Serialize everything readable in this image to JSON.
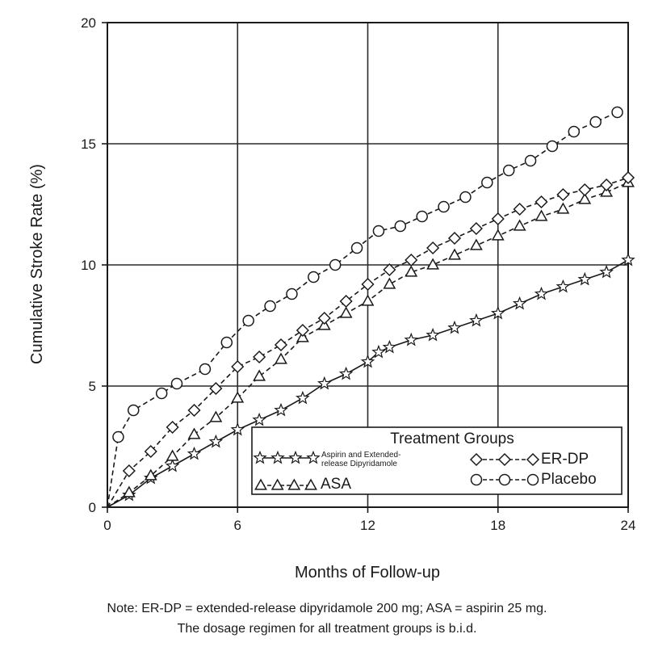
{
  "chart_data": {
    "type": "line",
    "title": "",
    "xlabel": "Months of Follow-up",
    "ylabel": "Cumulative Stroke Rate (%)",
    "xlim": [
      0,
      24
    ],
    "ylim": [
      0,
      20
    ],
    "xticks": [
      "0",
      "6",
      "12",
      "18",
      "24"
    ],
    "yticks": [
      "0",
      "5",
      "10",
      "15",
      "20"
    ],
    "grid": true,
    "legend": {
      "title": "Treatment Groups",
      "placement": "bottom-right"
    },
    "series": [
      {
        "name": "Aspirin and Extended-release Dipyridamole",
        "marker": "star",
        "line_style": "solid",
        "x": [
          0,
          1,
          2,
          3,
          4,
          5,
          6,
          7,
          8,
          9,
          10,
          11,
          12,
          12.5,
          13,
          14,
          15,
          16,
          17,
          18,
          19,
          20,
          21,
          22,
          23,
          24
        ],
        "y": [
          0,
          0.5,
          1.2,
          1.7,
          2.2,
          2.7,
          3.2,
          3.6,
          4.0,
          4.5,
          5.1,
          5.5,
          6.0,
          6.4,
          6.6,
          6.9,
          7.1,
          7.4,
          7.7,
          8.0,
          8.4,
          8.8,
          9.1,
          9.4,
          9.7,
          10.2
        ]
      },
      {
        "name": "ASA",
        "marker": "triangle",
        "line_style": "dashed",
        "x": [
          0,
          1,
          2,
          3,
          4,
          5,
          6,
          7,
          8,
          9,
          10,
          11,
          12,
          13,
          14,
          15,
          16,
          17,
          18,
          19,
          20,
          21,
          22,
          23,
          24
        ],
        "y": [
          0,
          0.6,
          1.3,
          2.1,
          3.0,
          3.7,
          4.5,
          5.4,
          6.1,
          7.0,
          7.5,
          8.0,
          8.5,
          9.2,
          9.7,
          10.0,
          10.4,
          10.8,
          11.2,
          11.6,
          12.0,
          12.3,
          12.7,
          13.0,
          13.4
        ]
      },
      {
        "name": "ER-DP",
        "marker": "diamond",
        "line_style": "dashed",
        "x": [
          0,
          1,
          2,
          3,
          4,
          5,
          6,
          7,
          8,
          9,
          10,
          11,
          12,
          13,
          14,
          15,
          16,
          17,
          18,
          19,
          20,
          21,
          22,
          23,
          24
        ],
        "y": [
          0,
          1.5,
          2.3,
          3.3,
          4.0,
          4.9,
          5.8,
          6.2,
          6.7,
          7.3,
          7.8,
          8.5,
          9.2,
          9.8,
          10.2,
          10.7,
          11.1,
          11.5,
          11.9,
          12.3,
          12.6,
          12.9,
          13.1,
          13.3,
          13.6
        ]
      },
      {
        "name": "Placebo",
        "marker": "circle",
        "line_style": "dashed",
        "x": [
          0,
          0.5,
          1.2,
          2.5,
          3.2,
          4.5,
          5.5,
          6.5,
          7.5,
          8.5,
          9.5,
          10.5,
          11.5,
          12.5,
          13.5,
          14.5,
          15.5,
          16.5,
          17.5,
          18.5,
          19.5,
          20.5,
          21.5,
          22.5,
          23.5
        ],
        "y": [
          0,
          2.9,
          4.0,
          4.7,
          5.1,
          5.7,
          6.8,
          7.7,
          8.3,
          8.8,
          9.5,
          10.0,
          10.7,
          11.4,
          11.6,
          12.0,
          12.4,
          12.8,
          13.4,
          13.9,
          14.3,
          14.9,
          15.5,
          15.9,
          16.3
        ]
      }
    ]
  },
  "legend_display": {
    "star_line1": "Aspirin and Extended-",
    "star_line2": "release Dipyridamole",
    "asa": "ASA",
    "erdp": "ER-DP",
    "placebo": "Placebo"
  },
  "note": {
    "line1": "Note: ER-DP = extended-release dipyridamole 200 mg; ASA = aspirin 25 mg.",
    "line2": "The dosage regimen for all treatment groups is b.i.d."
  },
  "colors": {
    "ink": "#1a1a1a",
    "grid": "#2a2a2a",
    "background": "#ffffff"
  }
}
